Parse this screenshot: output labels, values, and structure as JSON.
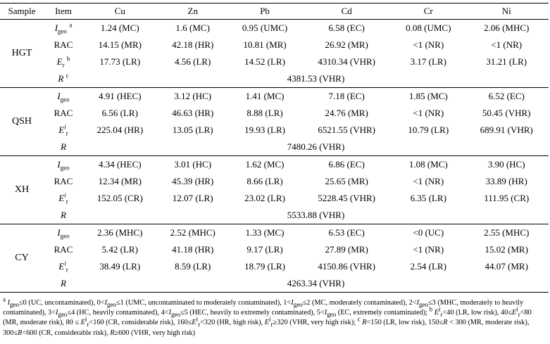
{
  "headers": [
    "Sample",
    "Item",
    "Cu",
    "Zn",
    "Pb",
    "Cd",
    "Cr",
    "Ni"
  ],
  "item_labels": {
    "igeo": "I",
    "igeo_sub": "geo",
    "igeo_mark": "a",
    "rac": "RAC",
    "er": "E",
    "er_sub": "r",
    "er_sup": "i",
    "er_mark": "b",
    "r": "R",
    "r_mark": "c"
  },
  "groups": [
    {
      "sample": "HGT",
      "igeo": [
        "1.24 (MC)",
        "1.6 (MC)",
        "0.95 (UMC)",
        "6.58 (EC)",
        "0.08 (UMC)",
        "2.06 (MHC)"
      ],
      "rac": [
        "14.15 (MR)",
        "42.18 (HR)",
        "10.81 (MR)",
        "26.92 (MR)",
        "<1 (NR)",
        "<1 (NR)"
      ],
      "er": [
        "17.73 (LR)",
        "4.56 (LR)",
        "14.52 (LR)",
        "4310.34 (VHR)",
        "3.17 (LR)",
        "31.21 (LR)"
      ],
      "r": "4381.53 (VHR)"
    },
    {
      "sample": "QSH",
      "igeo": [
        "4.91 (HEC)",
        "3.12 (HC)",
        "1.41 (MC)",
        "7.18 (EC)",
        "1.85 (MC)",
        "6.52 (EC)"
      ],
      "rac": [
        "6.56 (LR)",
        "46.63 (HR)",
        "8.88 (LR)",
        "24.76 (MR)",
        "<1 (NR)",
        "50.45 (VHR)"
      ],
      "er": [
        "225.04 (HR)",
        "13.05 (LR)",
        "19.93 (LR)",
        "6521.55 (VHR)",
        "10.79 (LR)",
        "689.91 (VHR)"
      ],
      "r": "7480.26 (VHR)"
    },
    {
      "sample": "XH",
      "igeo": [
        "4.34 (HEC)",
        "3.01 (HC)",
        "1.62 (MC)",
        "6.86 (EC)",
        "1.08 (MC)",
        "3.90 (HC)"
      ],
      "rac": [
        "12.34 (MR)",
        "45.39 (HR)",
        "8.66 (LR)",
        "25.65 (MR)",
        "<1 (NR)",
        "33.89 (HR)"
      ],
      "er": [
        "152.05 (CR)",
        "12.07 (LR)",
        "23.02 (LR)",
        "5228.45 (VHR)",
        "6.35 (LR)",
        "111.95 (CR)"
      ],
      "r": "5533.88 (VHR)"
    },
    {
      "sample": "CY",
      "igeo": [
        "2.36 (MHC)",
        "2.52 (MHC)",
        "1.33 (MC)",
        "6.53 (EC)",
        "<0 (UC)",
        "2.55 (MHC)"
      ],
      "rac": [
        "5.42 (LR)",
        "41.18 (HR)",
        "9.17 (LR)",
        "27.89 (MR)",
        "<1 (NR)",
        "15.02 (MR)"
      ],
      "er": [
        "38.49 (LR)",
        "8.59 (LR)",
        "18.79 (LR)",
        "4150.86 (VHR)",
        "2.54 (LR)",
        "44.07 (MR)"
      ],
      "r": "4263.34 (VHR)"
    }
  ],
  "notes": {
    "a": "a Igeo≤0 (UC, uncontaminated), 0<Igeo≤1 (UMC, uncontaminated to moderately contaminated), 1<Igeo≤2 (MC, moderately contaminated), 2<Igeo≤3 (MHC, moderately to heavily contaminated), 3<Igeo≤4 (HC, heavily contaminated), 4<Igeo≤5 (HEC, heavily to extremely contaminated), 5<Igeo (EC, extremely contaminated);",
    "b": "b Eir<40 (LR, low risk), 40≤Eir<80 (MR, moderate risk), 80 ≤ Eir<160 (CR, considerable risk), 160≤Eir<320 (HR, high risk), Eir≥320 (VHR, very high risk);",
    "c": "c R<150 (LR, low risk), 150≤R < 300 (MR, moderate risk), 300≤R<600 (CR, considerable risk), R≥600 (VHR, very high risk)"
  }
}
